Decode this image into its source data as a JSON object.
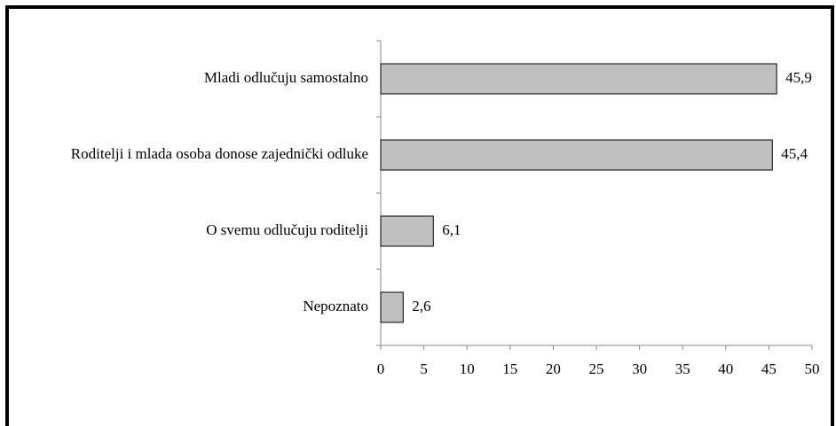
{
  "chart_data": {
    "type": "bar",
    "orientation": "horizontal",
    "categories": [
      "Mladi odlučuju samostalno",
      "Roditelji i mlada osoba donose zajednički odluke",
      "O svemu odlučuju roditelji",
      "Nepoznato"
    ],
    "values": [
      45.9,
      45.4,
      6.1,
      2.6
    ],
    "value_labels": [
      "45,9",
      "45,4",
      "6,1",
      "2,6"
    ],
    "color": "#c0c0c0",
    "xlim": [
      0,
      50
    ],
    "xticks": [
      0,
      5,
      10,
      15,
      20,
      25,
      30,
      35,
      40,
      45,
      50
    ]
  }
}
